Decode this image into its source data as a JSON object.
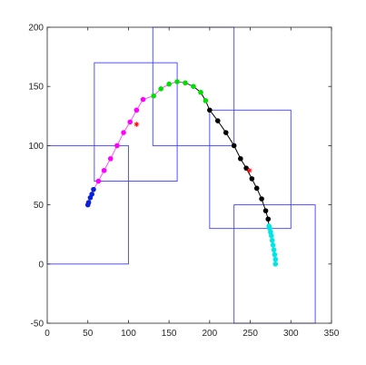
{
  "chart_data": {
    "type": "scatter",
    "xlim": [
      0,
      350
    ],
    "ylim": [
      -50,
      200
    ],
    "xticks": [
      "0",
      "50",
      "100",
      "150",
      "200",
      "250",
      "300",
      "350"
    ],
    "yticks": [
      "-50",
      "0",
      "50",
      "100",
      "150",
      "200"
    ],
    "grid": false,
    "colors": {
      "axes": "#262626",
      "box": "#4040ff",
      "curve_start": "#ff55ff",
      "curve_end": "#000000",
      "centroid": "#ff0000"
    },
    "boxes": [
      {
        "x": [
          0,
          100
        ],
        "y": [
          0,
          100
        ]
      },
      {
        "x": [
          58,
          160
        ],
        "y": [
          70,
          170
        ]
      },
      {
        "x": [
          130,
          230
        ],
        "y": [
          100,
          200
        ]
      },
      {
        "x": [
          200,
          300
        ],
        "y": [
          30,
          130
        ]
      },
      {
        "x": [
          230,
          330
        ],
        "y": [
          -50,
          50
        ]
      }
    ],
    "centroids": [
      {
        "x": 110,
        "y": 118
      },
      {
        "x": 249,
        "y": 79
      }
    ],
    "series": [
      {
        "color": "#0a1fd6",
        "points": [
          [
            50,
            50
          ],
          [
            51,
            52
          ],
          [
            53,
            56
          ],
          [
            55,
            59
          ],
          [
            57,
            63
          ]
        ]
      },
      {
        "color": "#ff00ff",
        "points": [
          [
            63,
            70
          ],
          [
            70,
            79
          ],
          [
            78,
            89
          ],
          [
            86,
            100
          ],
          [
            94,
            111
          ],
          [
            102,
            120
          ],
          [
            110,
            130
          ],
          [
            118,
            139
          ]
        ]
      },
      {
        "color": "#00e000",
        "points": [
          [
            131,
            142
          ],
          [
            140,
            148
          ],
          [
            150,
            152
          ],
          [
            160,
            154
          ],
          [
            170,
            153
          ],
          [
            180,
            150
          ],
          [
            189,
            145
          ],
          [
            195,
            138
          ]
        ]
      },
      {
        "color": "#000000",
        "points": [
          [
            200,
            130
          ],
          [
            210,
            121
          ],
          [
            220,
            111
          ],
          [
            230,
            100
          ],
          [
            238,
            89
          ],
          [
            245,
            81
          ],
          [
            252,
            72
          ],
          [
            258,
            64
          ],
          [
            264,
            55
          ],
          [
            269,
            45
          ],
          [
            272,
            38
          ]
        ]
      },
      {
        "color": "#00e5e5",
        "points": [
          [
            273,
            32
          ],
          [
            274,
            30
          ],
          [
            275,
            27
          ],
          [
            276,
            24
          ],
          [
            277,
            20
          ],
          [
            278,
            16
          ],
          [
            279,
            12
          ],
          [
            280,
            8
          ],
          [
            281,
            4
          ],
          [
            281,
            0
          ]
        ]
      }
    ]
  }
}
